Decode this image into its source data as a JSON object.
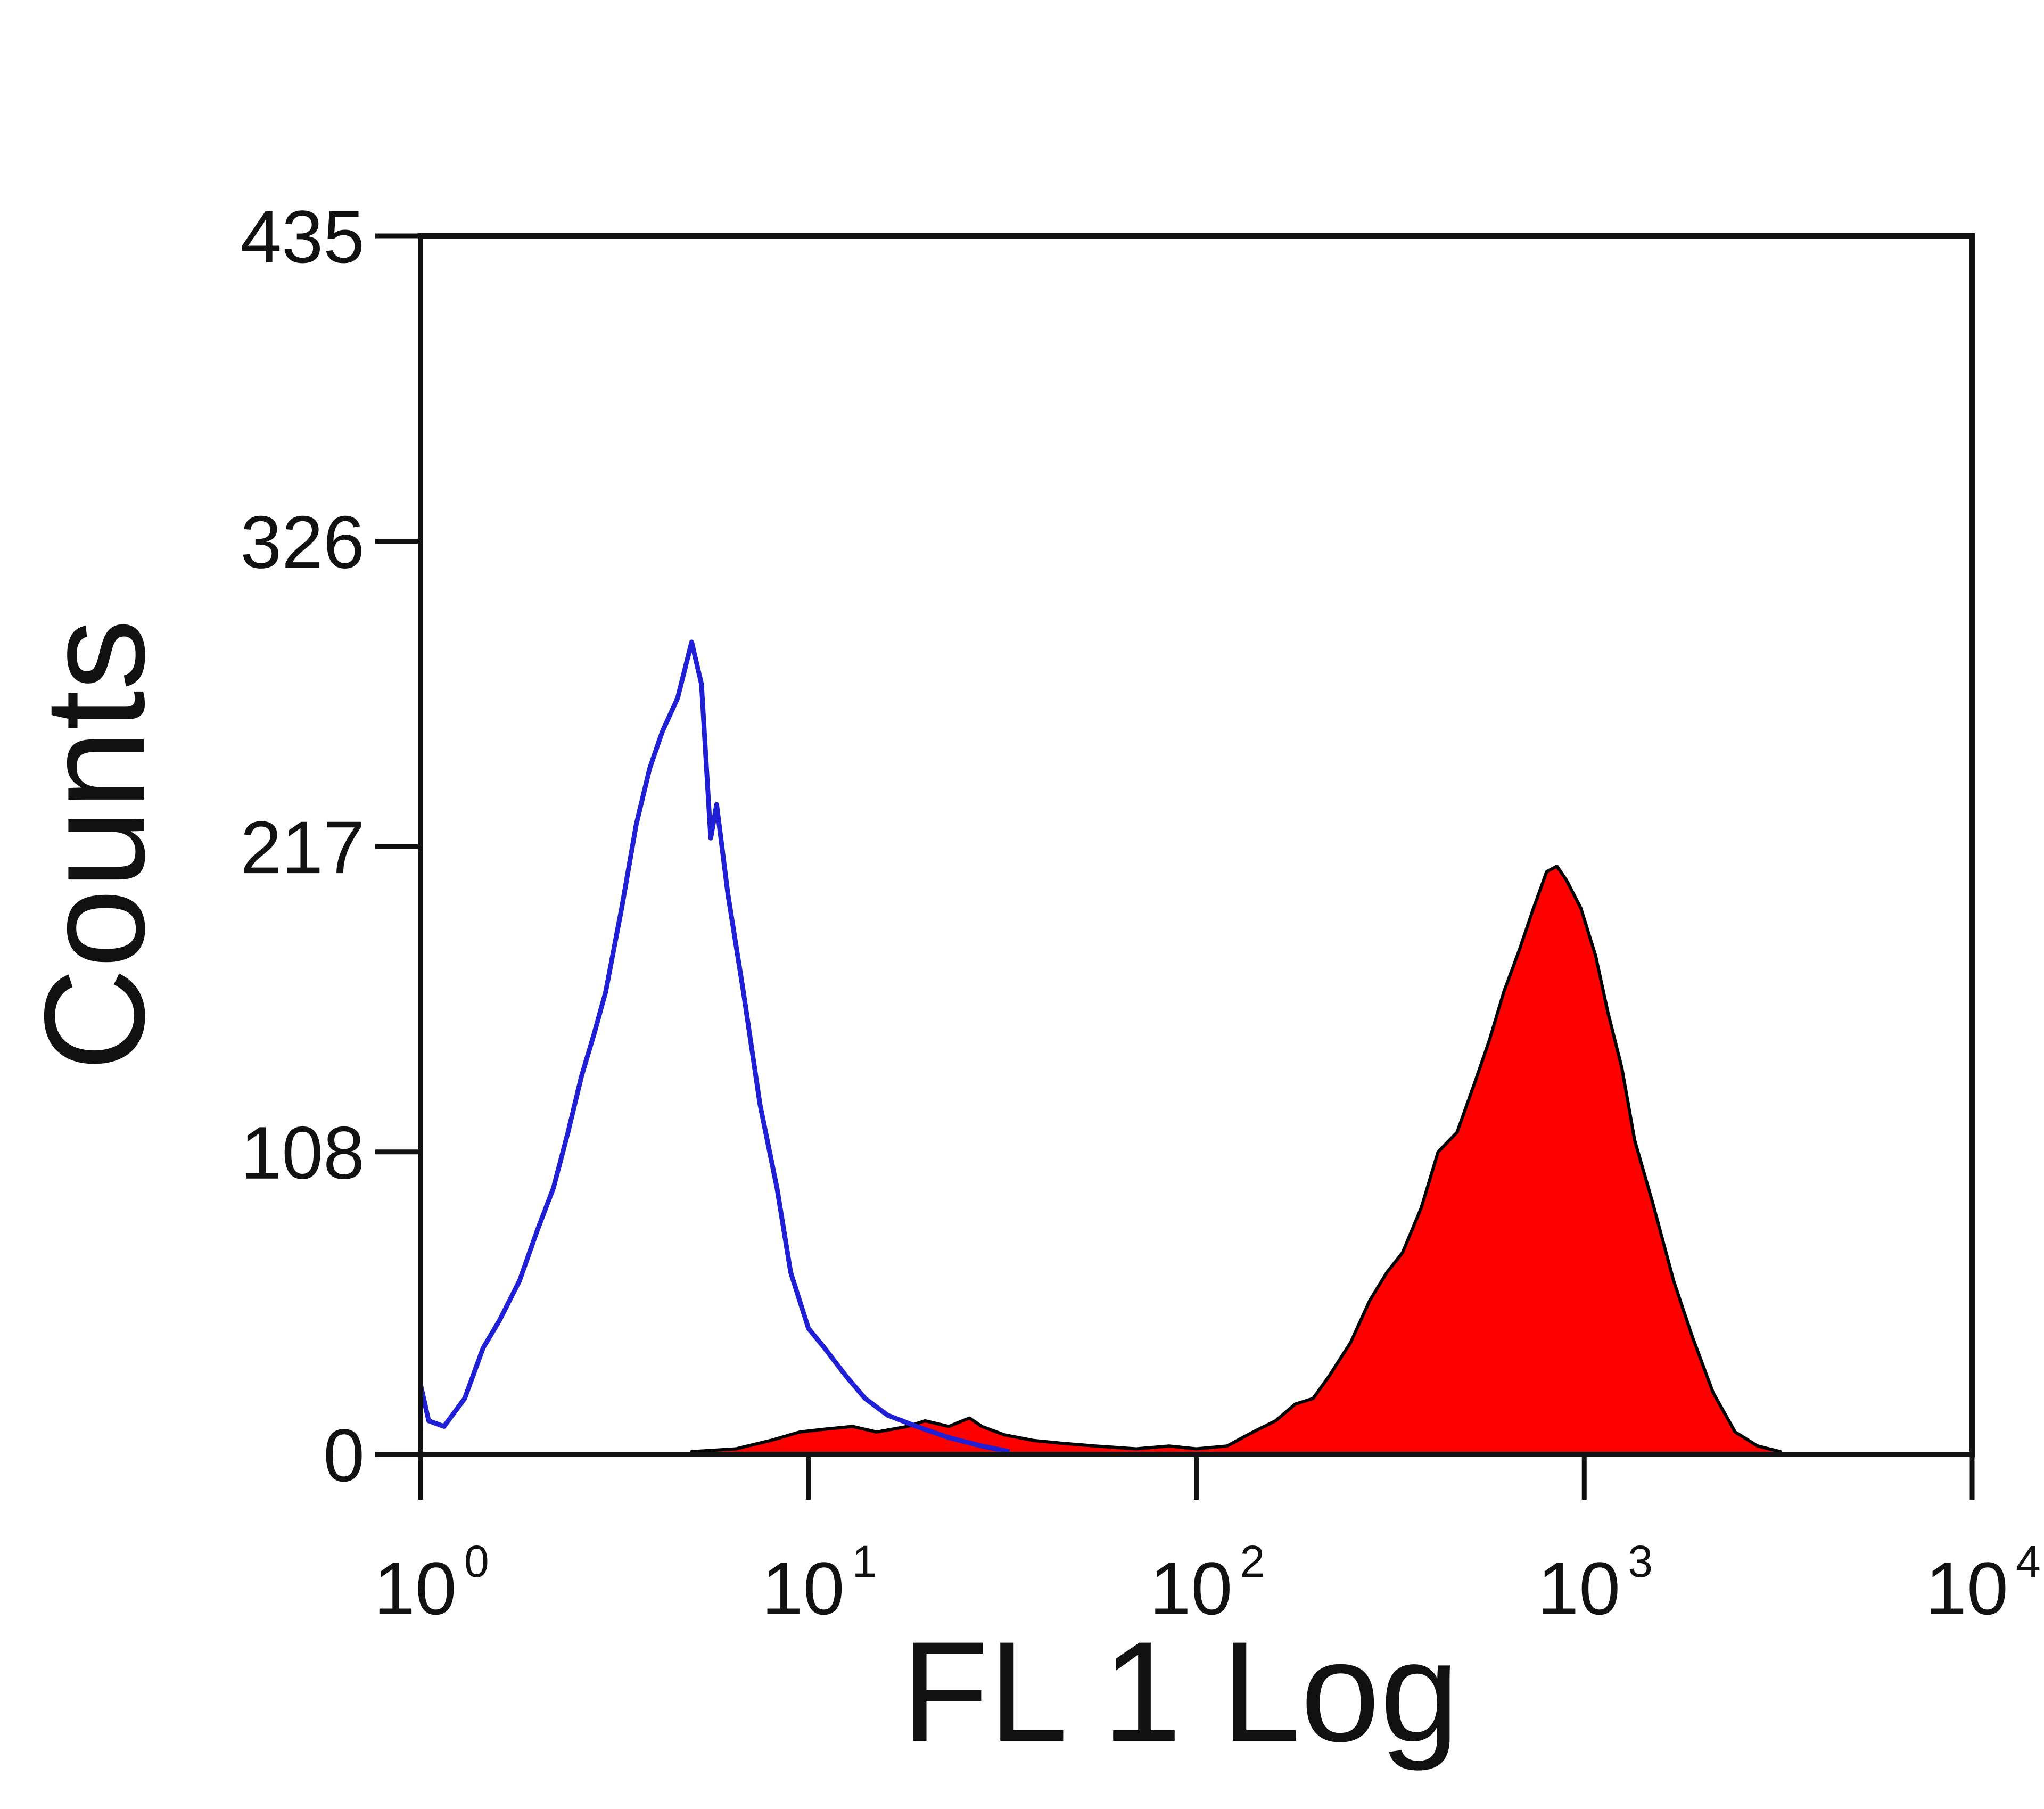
{
  "chart_data": {
    "type": "area",
    "title": "",
    "xlabel": "FL 1 Log",
    "ylabel": "Counts",
    "x_scale": "log",
    "xlim": [
      1,
      10000
    ],
    "ylim": [
      0,
      435
    ],
    "grid": false,
    "legend": "none",
    "x_ticks": [
      {
        "value": 1,
        "base": "10",
        "exp": "0"
      },
      {
        "value": 10,
        "base": "10",
        "exp": "1"
      },
      {
        "value": 100,
        "base": "10",
        "exp": "2"
      },
      {
        "value": 1000,
        "base": "10",
        "exp": "3"
      },
      {
        "value": 10000,
        "base": "10",
        "exp": "4"
      }
    ],
    "y_ticks": [
      {
        "value": 0,
        "label": "0"
      },
      {
        "value": 108,
        "label": "108"
      },
      {
        "value": 217,
        "label": "217"
      },
      {
        "value": 326,
        "label": "326"
      },
      {
        "value": 435,
        "label": "435"
      }
    ],
    "series": [
      {
        "style": "outline",
        "color": "#1f1fd6",
        "points": [
          [
            1.0,
            25
          ],
          [
            1.05,
            12
          ],
          [
            1.15,
            10
          ],
          [
            1.3,
            20
          ],
          [
            1.45,
            38
          ],
          [
            1.6,
            48
          ],
          [
            1.8,
            62
          ],
          [
            2.0,
            80
          ],
          [
            2.2,
            95
          ],
          [
            2.4,
            115
          ],
          [
            2.6,
            135
          ],
          [
            2.8,
            150
          ],
          [
            3.0,
            165
          ],
          [
            3.3,
            195
          ],
          [
            3.6,
            225
          ],
          [
            3.9,
            245
          ],
          [
            4.2,
            258
          ],
          [
            4.6,
            270
          ],
          [
            5.0,
            290
          ],
          [
            5.3,
            275
          ],
          [
            5.6,
            220
          ],
          [
            5.8,
            232
          ],
          [
            6.2,
            200
          ],
          [
            6.8,
            165
          ],
          [
            7.5,
            125
          ],
          [
            8.3,
            95
          ],
          [
            9.0,
            65
          ],
          [
            10.0,
            45
          ],
          [
            11.0,
            38
          ],
          [
            12.5,
            28
          ],
          [
            14.0,
            20
          ],
          [
            16.0,
            14
          ],
          [
            19.0,
            10
          ],
          [
            23.0,
            6
          ],
          [
            28.0,
            3
          ],
          [
            33.0,
            1
          ]
        ]
      },
      {
        "style": "filled",
        "color": "#ff0000",
        "stroke": "#000000",
        "points": [
          [
            5.0,
            1
          ],
          [
            6.5,
            2
          ],
          [
            8.0,
            5
          ],
          [
            9.5,
            8
          ],
          [
            11.0,
            9
          ],
          [
            13.0,
            10
          ],
          [
            15.0,
            8
          ],
          [
            18.0,
            10
          ],
          [
            20.0,
            12
          ],
          [
            23.0,
            10
          ],
          [
            26.0,
            13
          ],
          [
            28.0,
            10
          ],
          [
            32.0,
            7
          ],
          [
            38.0,
            5
          ],
          [
            45.0,
            4
          ],
          [
            55.0,
            3
          ],
          [
            70.0,
            2
          ],
          [
            85.0,
            3
          ],
          [
            100.0,
            2
          ],
          [
            120.0,
            3
          ],
          [
            140.0,
            8
          ],
          [
            160.0,
            12
          ],
          [
            180.0,
            18
          ],
          [
            200.0,
            20
          ],
          [
            220.0,
            28
          ],
          [
            250.0,
            40
          ],
          [
            280.0,
            55
          ],
          [
            310.0,
            65
          ],
          [
            340.0,
            72
          ],
          [
            380.0,
            88
          ],
          [
            420.0,
            108
          ],
          [
            470.0,
            115
          ],
          [
            520.0,
            132
          ],
          [
            570.0,
            148
          ],
          [
            620.0,
            165
          ],
          [
            680.0,
            180
          ],
          [
            740.0,
            195
          ],
          [
            800.0,
            208
          ],
          [
            850.0,
            210
          ],
          [
            900.0,
            205
          ],
          [
            980.0,
            195
          ],
          [
            1070.0,
            178
          ],
          [
            1150.0,
            158
          ],
          [
            1250.0,
            138
          ],
          [
            1350.0,
            112
          ],
          [
            1500.0,
            90
          ],
          [
            1700.0,
            62
          ],
          [
            1900.0,
            42
          ],
          [
            2150.0,
            22
          ],
          [
            2450.0,
            8
          ],
          [
            2800.0,
            3
          ],
          [
            3200.0,
            1
          ]
        ]
      }
    ]
  }
}
